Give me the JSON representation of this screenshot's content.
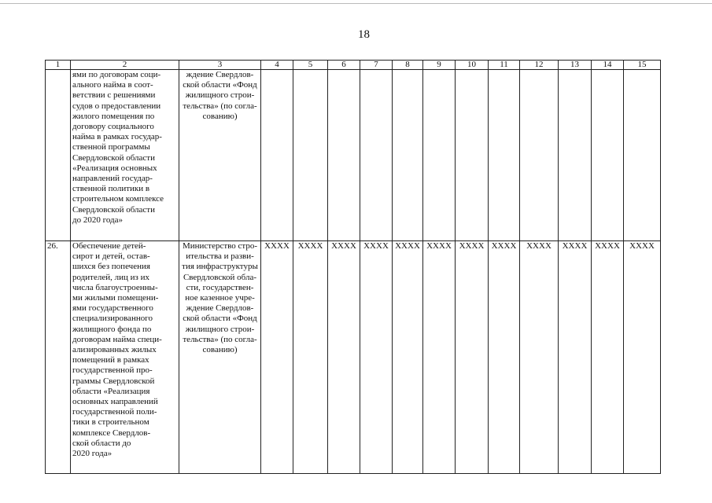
{
  "page_number": "18",
  "header": [
    "1",
    "2",
    "3",
    "4",
    "5",
    "6",
    "7",
    "8",
    "9",
    "10",
    "11",
    "12",
    "13",
    "14",
    "15"
  ],
  "rows": [
    {
      "num": "",
      "description": "ями по договорам соци-\nального найма в соот-\nветствии с решениями\nсудов о предоставлении\nжилого помещения по\nдоговору социального\nнайма в рамках государ-\nственной программы\nСвердловской области\n«Реализация основных\nнаправлений государ-\nственной политики в\nстроительном комплексе\nСвердловской области\nдо 2020 года»",
      "executor": "ждение Свердлов-\nской области «Фонд\nжилищного строи-\nтельства» (по согла-\nсованию)",
      "values": [
        "",
        "",
        "",
        "",
        "",
        "",
        "",
        "",
        "",
        "",
        "",
        ""
      ]
    },
    {
      "num": "26.",
      "description": "Обеспечение детей-\nсирот и детей, остав-\nшихся без попечения\nродителей, лиц из их\nчисла благоустроенны-\nми жилыми помещени-\nями государственного\nспециализированного\nжилищного фонда по\nдоговорам найма специ-\nализированных жилых\nпомещений в рамках\nгосударственной про-\nграммы Свердловской\nобласти «Реализация\nосновных направлений\nгосударственной поли-\nтики в строительном\nкомплексе Свердлов-\nской области до\n2020 года»",
      "executor": "Министерство стро-\nительства и разви-\nтия инфраструктуры\nСвердловской обла-\nсти, государствен-\nное казенное учре-\nждение Свердлов-\nской области «Фонд\nжилищного строи-\nтельства» (по согла-\nсованию)",
      "values": [
        "XXXX",
        "XXXX",
        "XXXX",
        "XXXX",
        "XXXX",
        "XXXX",
        "XXXX",
        "XXXX",
        "XXXX",
        "XXXX",
        "XXXX",
        "XXXX"
      ]
    }
  ]
}
